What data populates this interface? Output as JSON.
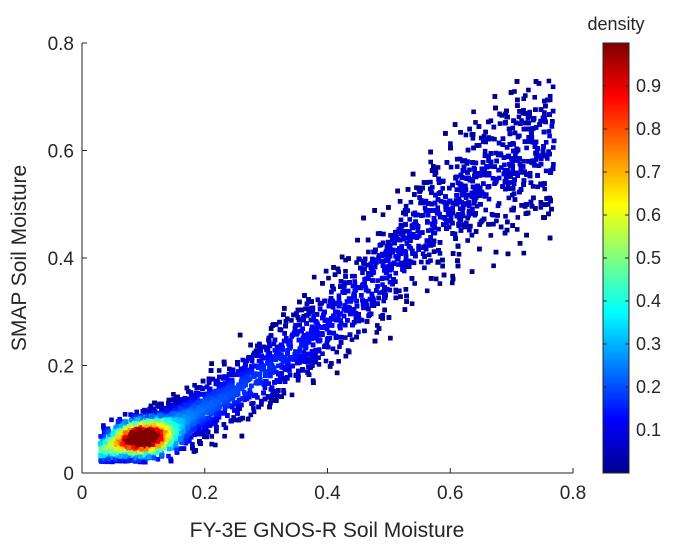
{
  "chart_data": {
    "type": "scatter",
    "subtype": "density-scatter",
    "xlabel": "FY-3E GNOS-R Soil Moisture",
    "ylabel": "SMAP Soil Moisture",
    "xlim": [
      0,
      0.8
    ],
    "ylim": [
      0,
      0.8
    ],
    "xticks": [
      "0",
      "0.2",
      "0.4",
      "0.6",
      "0.8"
    ],
    "yticks": [
      "0",
      "0.2",
      "0.4",
      "0.6",
      "0.8"
    ],
    "grid": false,
    "colorbar": {
      "title": "density",
      "range": [
        0,
        1
      ],
      "ticks": [
        "0.1",
        "0.2",
        "0.3",
        "0.4",
        "0.5",
        "0.6",
        "0.7",
        "0.8",
        "0.9"
      ],
      "tick_values": [
        0.1,
        0.2,
        0.3,
        0.4,
        0.5,
        0.6,
        0.7,
        0.8,
        0.9
      ],
      "colormap": "jet",
      "position": "right"
    },
    "peak_density_location": [
      0.1,
      0.065
    ],
    "point_cloud_extent": {
      "x": [
        0.03,
        0.8
      ],
      "y": [
        0.02,
        0.73
      ]
    }
  }
}
